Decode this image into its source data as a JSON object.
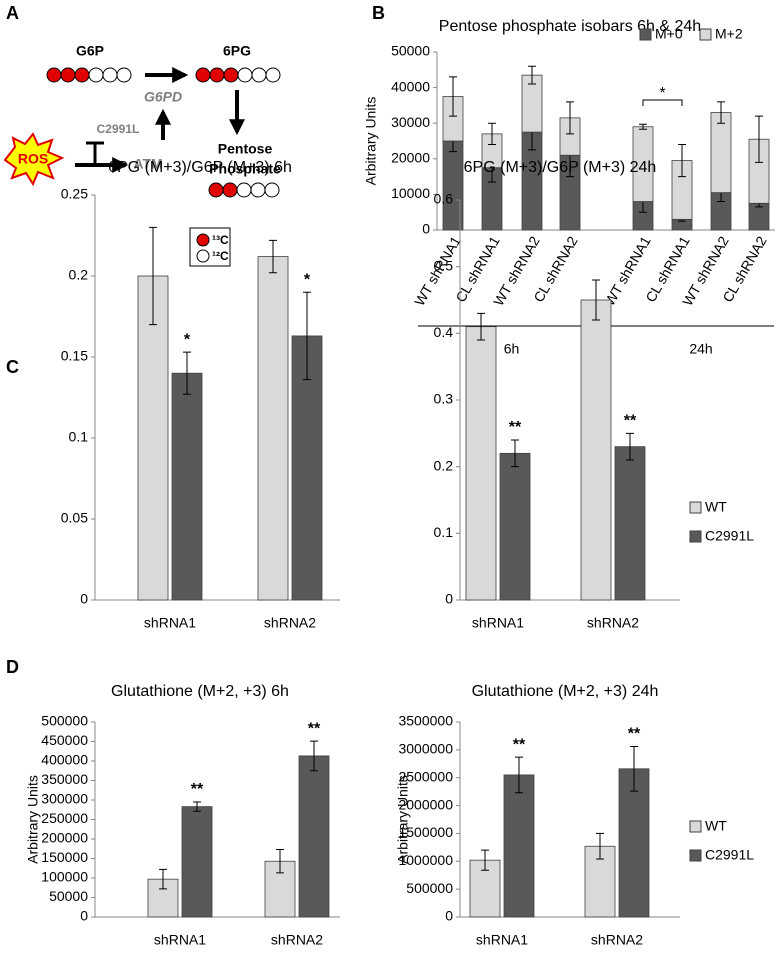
{
  "panels": [
    "A",
    "B",
    "C",
    "D"
  ],
  "diagram": {
    "g6p": "G6P",
    "pg6": "6PG",
    "enzyme": "G6PD",
    "mutation": "C2991L",
    "ros": "ROS",
    "atm": "ATM",
    "product": [
      "Pentose",
      "Phosphate"
    ],
    "legend": [
      "¹³C",
      "¹²C"
    ]
  },
  "chart_data": [
    {
      "type": "bar",
      "stacked": true,
      "title": "Pentose phosphate isobars 6h & 24h",
      "y_label": "Arbitrary Units",
      "categories": [
        "WT shRNA1",
        "CL shRNA1",
        "WT shRNA2",
        "CL shRNA2",
        "WT shRNA1",
        "CL shRNA1",
        "WT shRNA2",
        "CL shRNA2"
      ],
      "groups": [
        "6h",
        "24h"
      ],
      "series": [
        {
          "name": "M+0",
          "color": "#595959",
          "values": [
            25000,
            17500,
            27500,
            21000,
            8000,
            3000,
            10500,
            7500
          ],
          "errors": [
            3000,
            4000,
            5000,
            6000,
            3000,
            500,
            2500,
            1000
          ]
        },
        {
          "name": "M+2",
          "color": "#d9d9d9",
          "values": [
            12500,
            9500,
            16000,
            10500,
            21000,
            16500,
            22500,
            18000
          ],
          "errors": [
            5500,
            3000,
            2500,
            4500,
            700,
            4500,
            3000,
            6500
          ]
        }
      ],
      "annotation": "*",
      "ylim": [
        0,
        50000
      ],
      "yticks": [
        0,
        10000,
        20000,
        30000,
        40000,
        50000
      ],
      "legend": "top-right"
    },
    {
      "type": "bar",
      "title": "6PG (M+3)/G6P (M+3) 6h",
      "categories": [
        "shRNA1",
        "shRNA2"
      ],
      "series": [
        {
          "name": "WT",
          "color": "#d9d9d9",
          "values": [
            0.2,
            0.212
          ],
          "errors": [
            0.03,
            0.01
          ]
        },
        {
          "name": "C2991L",
          "color": "#595959",
          "values": [
            0.14,
            0.163
          ],
          "errors": [
            0.013,
            0.027
          ],
          "significance": [
            "*",
            "*"
          ]
        }
      ],
      "ylim": [
        0,
        0.25
      ],
      "yticks": [
        0,
        0.05,
        0.1,
        0.15,
        0.2,
        0.25
      ]
    },
    {
      "type": "bar",
      "title": "6PG (M+3)/G6P (M+3) 24h",
      "categories": [
        "shRNA1",
        "shRNA2"
      ],
      "series": [
        {
          "name": "WT",
          "color": "#d9d9d9",
          "values": [
            0.41,
            0.45
          ],
          "errors": [
            0.02,
            0.03
          ]
        },
        {
          "name": "C2991L",
          "color": "#595959",
          "values": [
            0.22,
            0.23
          ],
          "errors": [
            0.02,
            0.02
          ],
          "significance": [
            "**",
            "**"
          ]
        }
      ],
      "ylim": [
        0,
        0.6
      ],
      "yticks": [
        0,
        0.1,
        0.2,
        0.3,
        0.4,
        0.5,
        0.6
      ],
      "legend": "right"
    },
    {
      "type": "bar",
      "title": "Glutathione (M+2, +3) 6h",
      "y_label": "Arbitrary Units",
      "categories": [
        "shRNA1",
        "shRNA2"
      ],
      "series": [
        {
          "name": "WT",
          "color": "#d9d9d9",
          "values": [
            97000,
            143000
          ],
          "errors": [
            25000,
            30000
          ]
        },
        {
          "name": "C2991L",
          "color": "#595959",
          "values": [
            283000,
            413000
          ],
          "errors": [
            12000,
            38000
          ],
          "significance": [
            "**",
            "**"
          ]
        }
      ],
      "ylim": [
        0,
        500000
      ],
      "yticks": [
        0,
        50000,
        100000,
        150000,
        200000,
        250000,
        300000,
        350000,
        400000,
        450000,
        500000
      ]
    },
    {
      "type": "bar",
      "title": "Glutathione (M+2, +3) 24h",
      "y_label": "Arbitrary Units",
      "categories": [
        "shRNA1",
        "shRNA2"
      ],
      "series": [
        {
          "name": "WT",
          "color": "#d9d9d9",
          "values": [
            1020000,
            1270000
          ],
          "errors": [
            180000,
            230000
          ]
        },
        {
          "name": "C2991L",
          "color": "#595959",
          "values": [
            2550000,
            2660000
          ],
          "errors": [
            320000,
            400000
          ],
          "significance": [
            "**",
            "**"
          ]
        }
      ],
      "ylim": [
        0,
        3500000
      ],
      "yticks": [
        0,
        500000,
        1000000,
        1500000,
        2000000,
        2500000,
        3000000,
        3500000
      ],
      "legend": "right"
    }
  ]
}
